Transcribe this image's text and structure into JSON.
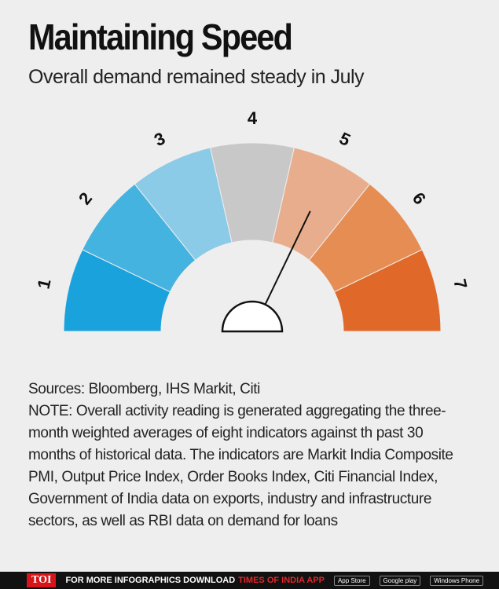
{
  "chart_data": {
    "type": "gauge",
    "title": "Maintaining Speed",
    "subtitle": "Overall demand remained steady in July",
    "categories": [
      "1",
      "2",
      "3",
      "4",
      "5",
      "6",
      "7"
    ],
    "colors": [
      "#1aa2dc",
      "#45b3e0",
      "#8ccbe7",
      "#c8c8c8",
      "#e8ad8c",
      "#e68d54",
      "#e0692a"
    ],
    "value": 5,
    "source": "Sources: Bloomberg, IHS Markit, Citi",
    "note": "NOTE: Overall activity reading is generated aggregating the three-month weighted averages of eight indicators against th past 30 months of historical data. The indicators are Markit India Composite PMI, Output Price Index, Order Books Index, Citi Financial Index, Government of India data on exports, industry and infrastructure sectors, as well as RBI data on demand for loans"
  },
  "footer": {
    "brand": "TOI",
    "text": "FOR MORE INFOGRAPHICS DOWNLOAD",
    "app": "TIMES OF INDIA APP",
    "badges": [
      "App Store",
      "Google play",
      "Windows Phone"
    ]
  }
}
